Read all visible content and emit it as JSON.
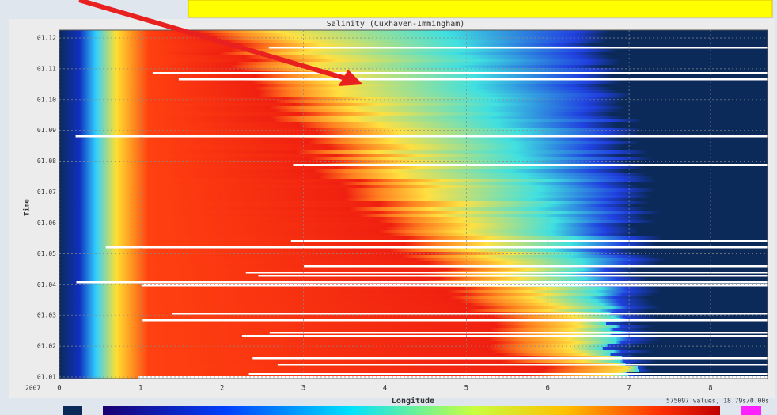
{
  "chart_data": {
    "type": "heatmap",
    "title": "Salinity (Cuxhaven-Immingham)",
    "x_label": "Longitude",
    "y_label": "Time",
    "footer": "575097 values, 18.79s/0.00s",
    "year_label": "2007",
    "xlim": [
      0,
      8.7
    ],
    "xticks": [
      0,
      1,
      2,
      3,
      4,
      5,
      6,
      7,
      8
    ],
    "ylim": [
      1,
      12
    ],
    "yticks": [
      {
        "value": 1,
        "label": "01.01"
      },
      {
        "value": 2,
        "label": "01.02"
      },
      {
        "value": 3,
        "label": "01.03"
      },
      {
        "value": 4,
        "label": "01.04"
      },
      {
        "value": 5,
        "label": "01.05"
      },
      {
        "value": 6,
        "label": "01.06"
      },
      {
        "value": 7,
        "label": "01.07"
      },
      {
        "value": 8,
        "label": "01.08"
      },
      {
        "value": 9,
        "label": "01.09"
      },
      {
        "value": 10,
        "label": "01.10"
      },
      {
        "value": 11,
        "label": "01.11"
      },
      {
        "value": 12,
        "label": "01.12"
      }
    ],
    "grid": true
  }
}
